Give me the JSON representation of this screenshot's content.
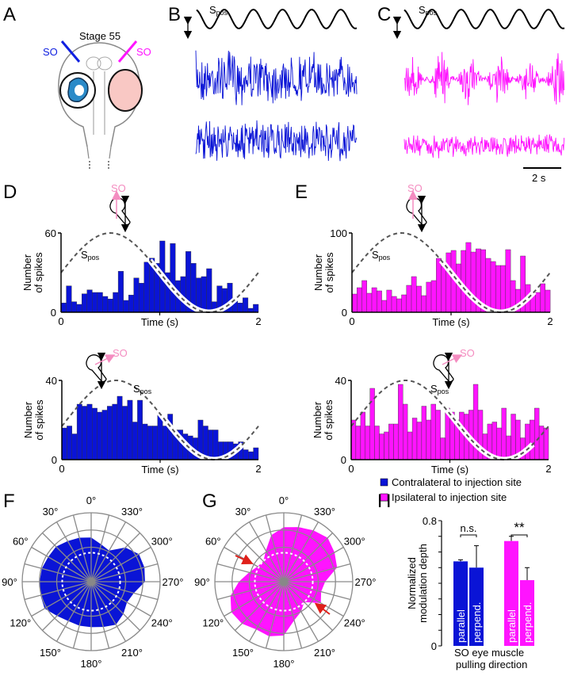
{
  "panels": {
    "a": "A",
    "b": "B",
    "c": "C",
    "d": "D",
    "e": "E",
    "f": "F",
    "g": "G",
    "h": "H"
  },
  "panel_a": {
    "stage": "Stage 55",
    "so_left": "SO",
    "so_right": "SO"
  },
  "traces": {
    "spos": "S",
    "spos_sub": "pos",
    "scale_bar": "2 s"
  },
  "colors": {
    "contralateral": "#0a14d6",
    "ipsilateral": "#ff14ff",
    "so_arrow": "#f48cc0",
    "spos": "#555555",
    "arrow_red": "#e0201a",
    "polar_grid": "#8a8a8a"
  },
  "chart_data": [
    {
      "id": "D-top",
      "type": "bar",
      "title": "",
      "xlabel": "Time (s)",
      "ylabel": "Number of spikes",
      "xlim": [
        0,
        2
      ],
      "ylim": [
        0,
        60
      ],
      "xticks": [
        "0",
        "2"
      ],
      "yticks": [
        "0",
        "60"
      ],
      "curve_label": "S",
      "curve_label_sub": "pos",
      "so_label": "SO",
      "color": "#0a14d6",
      "values": [
        7,
        20,
        8,
        6,
        14,
        17,
        15,
        15,
        12,
        10,
        15,
        31,
        9,
        13,
        26,
        22,
        38,
        41,
        37,
        54,
        30,
        52,
        24,
        27,
        46,
        37,
        26,
        27,
        33,
        8,
        20,
        18,
        22,
        9,
        7,
        11,
        3,
        6
      ]
    },
    {
      "id": "E-top",
      "type": "bar",
      "title": "",
      "xlabel": "Time (s)",
      "ylabel": "Number of spikes",
      "xlim": [
        0,
        2
      ],
      "ylim": [
        0,
        100
      ],
      "xticks": [
        "0",
        "2"
      ],
      "yticks": [
        "0",
        "100"
      ],
      "curve_label": "S",
      "curve_label_sub": "pos",
      "so_label": "SO",
      "color": "#ff14ff",
      "values": [
        23,
        31,
        40,
        24,
        31,
        27,
        15,
        28,
        20,
        17,
        22,
        34,
        45,
        33,
        21,
        38,
        40,
        68,
        58,
        75,
        78,
        61,
        78,
        88,
        76,
        80,
        79,
        68,
        64,
        59,
        59,
        79,
        40,
        29,
        71,
        35,
        24,
        25,
        36,
        28
      ]
    },
    {
      "id": "D-bottom",
      "type": "bar",
      "title": "",
      "xlabel": "Time (s)",
      "ylabel": "Number of spikes",
      "xlim": [
        0,
        2
      ],
      "ylim": [
        0,
        40
      ],
      "xticks": [
        "0",
        "2"
      ],
      "yticks": [
        "0",
        "40"
      ],
      "curve_label": "S",
      "curve_label_sub": "pos",
      "so_label": "SO",
      "color": "#0a14d6",
      "values": [
        16,
        17,
        13,
        28,
        27,
        28,
        26,
        24,
        25,
        27,
        28,
        32,
        27,
        30,
        19,
        30,
        18,
        17,
        17,
        23,
        17,
        23,
        15,
        15,
        13,
        12,
        11,
        20,
        17,
        15,
        15,
        9,
        9,
        9,
        8,
        9,
        5,
        4,
        6
      ]
    },
    {
      "id": "E-bottom",
      "type": "bar",
      "title": "",
      "xlabel": "Time (s)",
      "ylabel": "Number of spikes",
      "xlim": [
        0,
        2
      ],
      "ylim": [
        0,
        40
      ],
      "xticks": [
        "0",
        "2"
      ],
      "yticks": [
        "0",
        "40"
      ],
      "curve_label": "S",
      "curve_label_sub": "pos",
      "so_label": "SO",
      "color": "#ff14ff",
      "values": [
        20,
        17,
        24,
        17,
        36,
        17,
        13,
        14,
        18,
        18,
        38,
        28,
        14,
        21,
        19,
        27,
        20,
        28,
        25,
        11,
        26,
        24,
        20,
        24,
        23,
        25,
        38,
        25,
        13,
        18,
        19,
        16,
        26,
        12,
        23,
        20,
        11,
        18,
        20,
        26,
        17,
        16
      ]
    },
    {
      "id": "F",
      "type": "polar",
      "color": "#0a14d6",
      "angle_labels": [
        "0°",
        "30°",
        "60°",
        "90°",
        "120°",
        "150°",
        "180°",
        "210°",
        "240°",
        "270°",
        "300°",
        "330°"
      ],
      "angles": [
        0,
        15,
        30,
        45,
        60,
        75,
        90,
        105,
        120,
        135,
        150,
        165,
        180,
        195,
        210,
        225,
        240,
        255,
        270,
        285,
        300,
        315,
        330,
        345
      ],
      "radii": [
        0.64,
        0.66,
        0.68,
        0.72,
        0.72,
        0.74,
        0.75,
        0.76,
        0.78,
        0.7,
        0.66,
        0.66,
        0.66,
        0.68,
        0.72,
        0.66,
        0.6,
        0.64,
        0.78,
        0.8,
        0.8,
        0.7,
        0.52,
        0.56
      ]
    },
    {
      "id": "G",
      "type": "polar",
      "color": "#ff14ff",
      "angle_labels": [
        "0°",
        "30°",
        "60°",
        "90°",
        "120°",
        "150°",
        "180°",
        "210°",
        "240°",
        "270°",
        "300°",
        "330°"
      ],
      "angles": [
        0,
        15,
        30,
        45,
        60,
        75,
        90,
        105,
        120,
        135,
        150,
        165,
        180,
        195,
        210,
        225,
        240,
        255,
        270,
        285,
        300,
        315,
        330,
        345
      ],
      "radii": [
        0.79,
        0.7,
        0.52,
        0.42,
        0.44,
        0.52,
        0.65,
        0.8,
        0.88,
        0.86,
        0.8,
        0.82,
        0.78,
        0.58,
        0.5,
        0.42,
        0.62,
        0.56,
        0.6,
        0.8,
        0.85,
        0.9,
        0.86,
        0.82
      ]
    },
    {
      "id": "H",
      "type": "bar",
      "ylabel": "Normalized modulation depth",
      "xlabel_line1": "SO eye muscle",
      "xlabel_line2": "pulling direction",
      "ylim": [
        0,
        0.8
      ],
      "yticks": [
        "0",
        "0.8"
      ],
      "legend": [
        {
          "label": "Contralateral to injection site",
          "color": "#0a14d6"
        },
        {
          "label": "Ipsilateral to injection site",
          "color": "#ff14ff"
        }
      ],
      "groups": [
        {
          "name": "Contralateral",
          "color": "#0a14d6",
          "significance": "n.s.",
          "bars": [
            {
              "label": "parallel",
              "value": 0.54,
              "error": 0.01
            },
            {
              "label": "perpend.",
              "value": 0.5,
              "error": 0.14
            }
          ]
        },
        {
          "name": "Ipsilateral",
          "color": "#ff14ff",
          "significance": "**",
          "bars": [
            {
              "label": "parallel",
              "value": 0.67,
              "error": 0.03
            },
            {
              "label": "perpend.",
              "value": 0.42,
              "error": 0.08
            }
          ]
        }
      ]
    }
  ]
}
